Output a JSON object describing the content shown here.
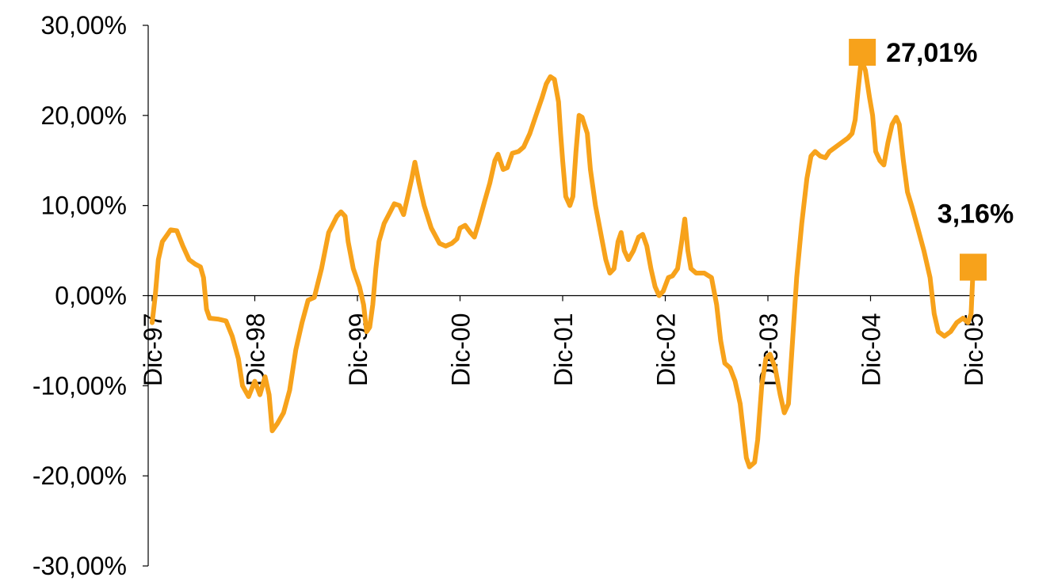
{
  "chart_data": {
    "type": "line",
    "title": "",
    "xlabel": "",
    "ylabel": "",
    "ylim": [
      -0.3,
      0.3
    ],
    "y_ticks": [
      {
        "value": 0.3,
        "label": "30,00%"
      },
      {
        "value": 0.2,
        "label": "20,00%"
      },
      {
        "value": 0.1,
        "label": "10,00%"
      },
      {
        "value": 0.0,
        "label": "0,00%"
      },
      {
        "value": -0.1,
        "label": "-10,00%"
      },
      {
        "value": -0.2,
        "label": "-20,00%"
      },
      {
        "value": -0.3,
        "label": "-30,00%"
      }
    ],
    "x_categories": [
      "Dic-97",
      "Dic-98",
      "Dic-99",
      "Dic-00",
      "Dic-01",
      "Dic-02",
      "Dic-03",
      "Dic-04",
      "Dic-05"
    ],
    "x_unit": "years since Dic-97",
    "grid": false,
    "legend": "none",
    "line_color": "#F7A21B",
    "series": [
      {
        "points": [
          [
            0.0,
            -0.03
          ],
          [
            0.03,
            0.0
          ],
          [
            0.06,
            0.04
          ],
          [
            0.1,
            0.06
          ],
          [
            0.15,
            0.068
          ],
          [
            0.18,
            0.073
          ],
          [
            0.24,
            0.072
          ],
          [
            0.3,
            0.055
          ],
          [
            0.36,
            0.04
          ],
          [
            0.42,
            0.035
          ],
          [
            0.47,
            0.032
          ],
          [
            0.5,
            0.02
          ],
          [
            0.53,
            -0.015
          ],
          [
            0.56,
            -0.025
          ],
          [
            0.64,
            -0.026
          ],
          [
            0.72,
            -0.028
          ],
          [
            0.78,
            -0.045
          ],
          [
            0.84,
            -0.07
          ],
          [
            0.88,
            -0.1
          ],
          [
            0.94,
            -0.112
          ],
          [
            1.0,
            -0.095
          ],
          [
            1.05,
            -0.11
          ],
          [
            1.1,
            -0.09
          ],
          [
            1.14,
            -0.11
          ],
          [
            1.17,
            -0.15
          ],
          [
            1.22,
            -0.142
          ],
          [
            1.28,
            -0.13
          ],
          [
            1.34,
            -0.105
          ],
          [
            1.4,
            -0.06
          ],
          [
            1.46,
            -0.03
          ],
          [
            1.52,
            -0.005
          ],
          [
            1.58,
            -0.002
          ],
          [
            1.65,
            0.03
          ],
          [
            1.72,
            0.07
          ],
          [
            1.8,
            0.088
          ],
          [
            1.84,
            0.093
          ],
          [
            1.88,
            0.088
          ],
          [
            1.91,
            0.06
          ],
          [
            1.96,
            0.03
          ],
          [
            2.02,
            0.01
          ],
          [
            2.06,
            -0.01
          ],
          [
            2.09,
            -0.04
          ],
          [
            2.12,
            -0.035
          ],
          [
            2.15,
            -0.01
          ],
          [
            2.18,
            0.03
          ],
          [
            2.21,
            0.06
          ],
          [
            2.26,
            0.08
          ],
          [
            2.32,
            0.093
          ],
          [
            2.36,
            0.102
          ],
          [
            2.41,
            0.1
          ],
          [
            2.45,
            0.09
          ],
          [
            2.49,
            0.11
          ],
          [
            2.53,
            0.13
          ],
          [
            2.56,
            0.148
          ],
          [
            2.6,
            0.125
          ],
          [
            2.65,
            0.1
          ],
          [
            2.72,
            0.075
          ],
          [
            2.8,
            0.058
          ],
          [
            2.86,
            0.055
          ],
          [
            2.92,
            0.058
          ],
          [
            2.97,
            0.063
          ],
          [
            3.0,
            0.075
          ],
          [
            3.05,
            0.078
          ],
          [
            3.1,
            0.07
          ],
          [
            3.14,
            0.065
          ],
          [
            3.18,
            0.08
          ],
          [
            3.24,
            0.105
          ],
          [
            3.29,
            0.125
          ],
          [
            3.34,
            0.15
          ],
          [
            3.37,
            0.157
          ],
          [
            3.42,
            0.14
          ],
          [
            3.46,
            0.142
          ],
          [
            3.51,
            0.158
          ],
          [
            3.57,
            0.16
          ],
          [
            3.62,
            0.165
          ],
          [
            3.68,
            0.18
          ],
          [
            3.74,
            0.2
          ],
          [
            3.8,
            0.22
          ],
          [
            3.84,
            0.235
          ],
          [
            3.88,
            0.243
          ],
          [
            3.92,
            0.24
          ],
          [
            3.96,
            0.215
          ],
          [
            3.98,
            0.18
          ],
          [
            4.0,
            0.15
          ],
          [
            4.03,
            0.11
          ],
          [
            4.07,
            0.1
          ],
          [
            4.1,
            0.11
          ],
          [
            4.13,
            0.16
          ],
          [
            4.16,
            0.2
          ],
          [
            4.19,
            0.198
          ],
          [
            4.24,
            0.18
          ],
          [
            4.27,
            0.14
          ],
          [
            4.32,
            0.1
          ],
          [
            4.37,
            0.07
          ],
          [
            4.42,
            0.04
          ],
          [
            4.46,
            0.025
          ],
          [
            4.5,
            0.03
          ],
          [
            4.54,
            0.06
          ],
          [
            4.57,
            0.07
          ],
          [
            4.6,
            0.05
          ],
          [
            4.64,
            0.04
          ],
          [
            4.69,
            0.05
          ],
          [
            4.74,
            0.065
          ],
          [
            4.78,
            0.068
          ],
          [
            4.82,
            0.055
          ],
          [
            4.86,
            0.03
          ],
          [
            4.9,
            0.01
          ],
          [
            4.94,
            0.0
          ],
          [
            4.98,
            0.005
          ],
          [
            5.03,
            0.02
          ],
          [
            5.07,
            0.022
          ],
          [
            5.12,
            0.03
          ],
          [
            5.16,
            0.06
          ],
          [
            5.19,
            0.085
          ],
          [
            5.22,
            0.05
          ],
          [
            5.25,
            0.03
          ],
          [
            5.3,
            0.025
          ],
          [
            5.38,
            0.025
          ],
          [
            5.45,
            0.02
          ],
          [
            5.5,
            -0.01
          ],
          [
            5.54,
            -0.05
          ],
          [
            5.58,
            -0.075
          ],
          [
            5.63,
            -0.08
          ],
          [
            5.68,
            -0.095
          ],
          [
            5.73,
            -0.12
          ],
          [
            5.76,
            -0.15
          ],
          [
            5.79,
            -0.18
          ],
          [
            5.82,
            -0.19
          ],
          [
            5.87,
            -0.185
          ],
          [
            5.9,
            -0.16
          ],
          [
            5.94,
            -0.1
          ],
          [
            5.98,
            -0.07
          ],
          [
            6.02,
            -0.065
          ],
          [
            6.07,
            -0.08
          ],
          [
            6.12,
            -0.11
          ],
          [
            6.16,
            -0.13
          ],
          [
            6.2,
            -0.12
          ],
          [
            6.24,
            -0.05
          ],
          [
            6.28,
            0.02
          ],
          [
            6.33,
            0.08
          ],
          [
            6.38,
            0.13
          ],
          [
            6.42,
            0.155
          ],
          [
            6.46,
            0.16
          ],
          [
            6.51,
            0.155
          ],
          [
            6.56,
            0.153
          ],
          [
            6.6,
            0.16
          ],
          [
            6.66,
            0.165
          ],
          [
            6.72,
            0.17
          ],
          [
            6.78,
            0.175
          ],
          [
            6.82,
            0.18
          ],
          [
            6.85,
            0.195
          ],
          [
            6.88,
            0.23
          ],
          [
            6.91,
            0.262
          ],
          [
            6.95,
            0.25
          ],
          [
            6.99,
            0.22
          ],
          [
            7.02,
            0.2
          ],
          [
            7.05,
            0.16
          ],
          [
            7.09,
            0.15
          ],
          [
            7.13,
            0.145
          ],
          [
            7.17,
            0.17
          ],
          [
            7.21,
            0.19
          ],
          [
            7.25,
            0.198
          ],
          [
            7.28,
            0.19
          ],
          [
            7.32,
            0.15
          ],
          [
            7.36,
            0.115
          ],
          [
            7.4,
            0.1
          ],
          [
            7.46,
            0.075
          ],
          [
            7.52,
            0.05
          ],
          [
            7.58,
            0.02
          ],
          [
            7.62,
            -0.02
          ],
          [
            7.66,
            -0.04
          ],
          [
            7.72,
            -0.045
          ],
          [
            7.78,
            -0.04
          ],
          [
            7.84,
            -0.03
          ],
          [
            7.9,
            -0.025
          ],
          [
            7.95,
            -0.03
          ],
          [
            7.98,
            -0.02
          ],
          [
            8.0,
            0.032
          ]
        ]
      }
    ],
    "annotations": [
      {
        "x": 6.92,
        "y": 0.2701,
        "label": "27,01%",
        "marker": "square"
      },
      {
        "x": 8.0,
        "y": 0.0316,
        "label": "3,16%",
        "marker": "square"
      }
    ]
  }
}
